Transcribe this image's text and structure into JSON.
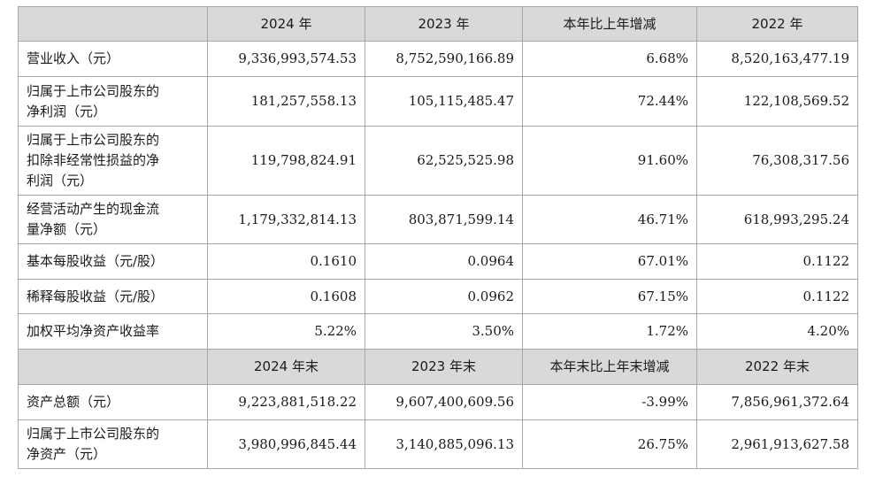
{
  "header1": [
    "",
    "2024 年",
    "2023 年",
    "本年比上年增减",
    "2022 年"
  ],
  "rows1": [
    {
      "label": [
        "营业收入（元）"
      ],
      "values": [
        "9,336,993,574.53",
        "8,752,590,166.89",
        "6.68%",
        "8,520,163,477.19"
      ]
    },
    {
      "label": [
        "归属于上市公司股东的",
        "净利润（元）"
      ],
      "values": [
        "181,257,558.13",
        "105,115,485.47",
        "72.44%",
        "122,108,569.52"
      ]
    },
    {
      "label": [
        "归属于上市公司股东的",
        "扣除非经常性损益的净",
        "利润（元）"
      ],
      "values": [
        "119,798,824.91",
        "62,525,525.98",
        "91.60%",
        "76,308,317.56"
      ]
    },
    {
      "label": [
        "经营活动产生的现金流",
        "量净额（元）"
      ],
      "values": [
        "1,179,332,814.13",
        "803,871,599.14",
        "46.71%",
        "618,993,295.24"
      ]
    },
    {
      "label": [
        "基本每股收益（元/股）"
      ],
      "values": [
        "0.1610",
        "0.0964",
        "67.01%",
        "0.1122"
      ]
    },
    {
      "label": [
        "稀释每股收益（元/股）"
      ],
      "values": [
        "0.1608",
        "0.0962",
        "67.15%",
        "0.1122"
      ]
    },
    {
      "label": [
        "加权平均净资产收益率"
      ],
      "values": [
        "5.22%",
        "3.50%",
        "1.72%",
        "4.20%"
      ]
    }
  ],
  "header2": [
    "",
    "2024 年末",
    "2023 年末",
    "本年末比上年末增减",
    "2022 年末"
  ],
  "rows2": [
    {
      "label": [
        "资产总额（元）"
      ],
      "values": [
        "9,223,881,518.22",
        "9,607,400,609.56",
        "-3.99%",
        "7,856,961,372.64"
      ]
    },
    {
      "label": [
        "归属于上市公司股东的",
        "净资产（元）"
      ],
      "values": [
        "3,980,996,845.44",
        "3,140,885,096.13",
        "26.75%",
        "2,961,913,627.58"
      ]
    }
  ]
}
